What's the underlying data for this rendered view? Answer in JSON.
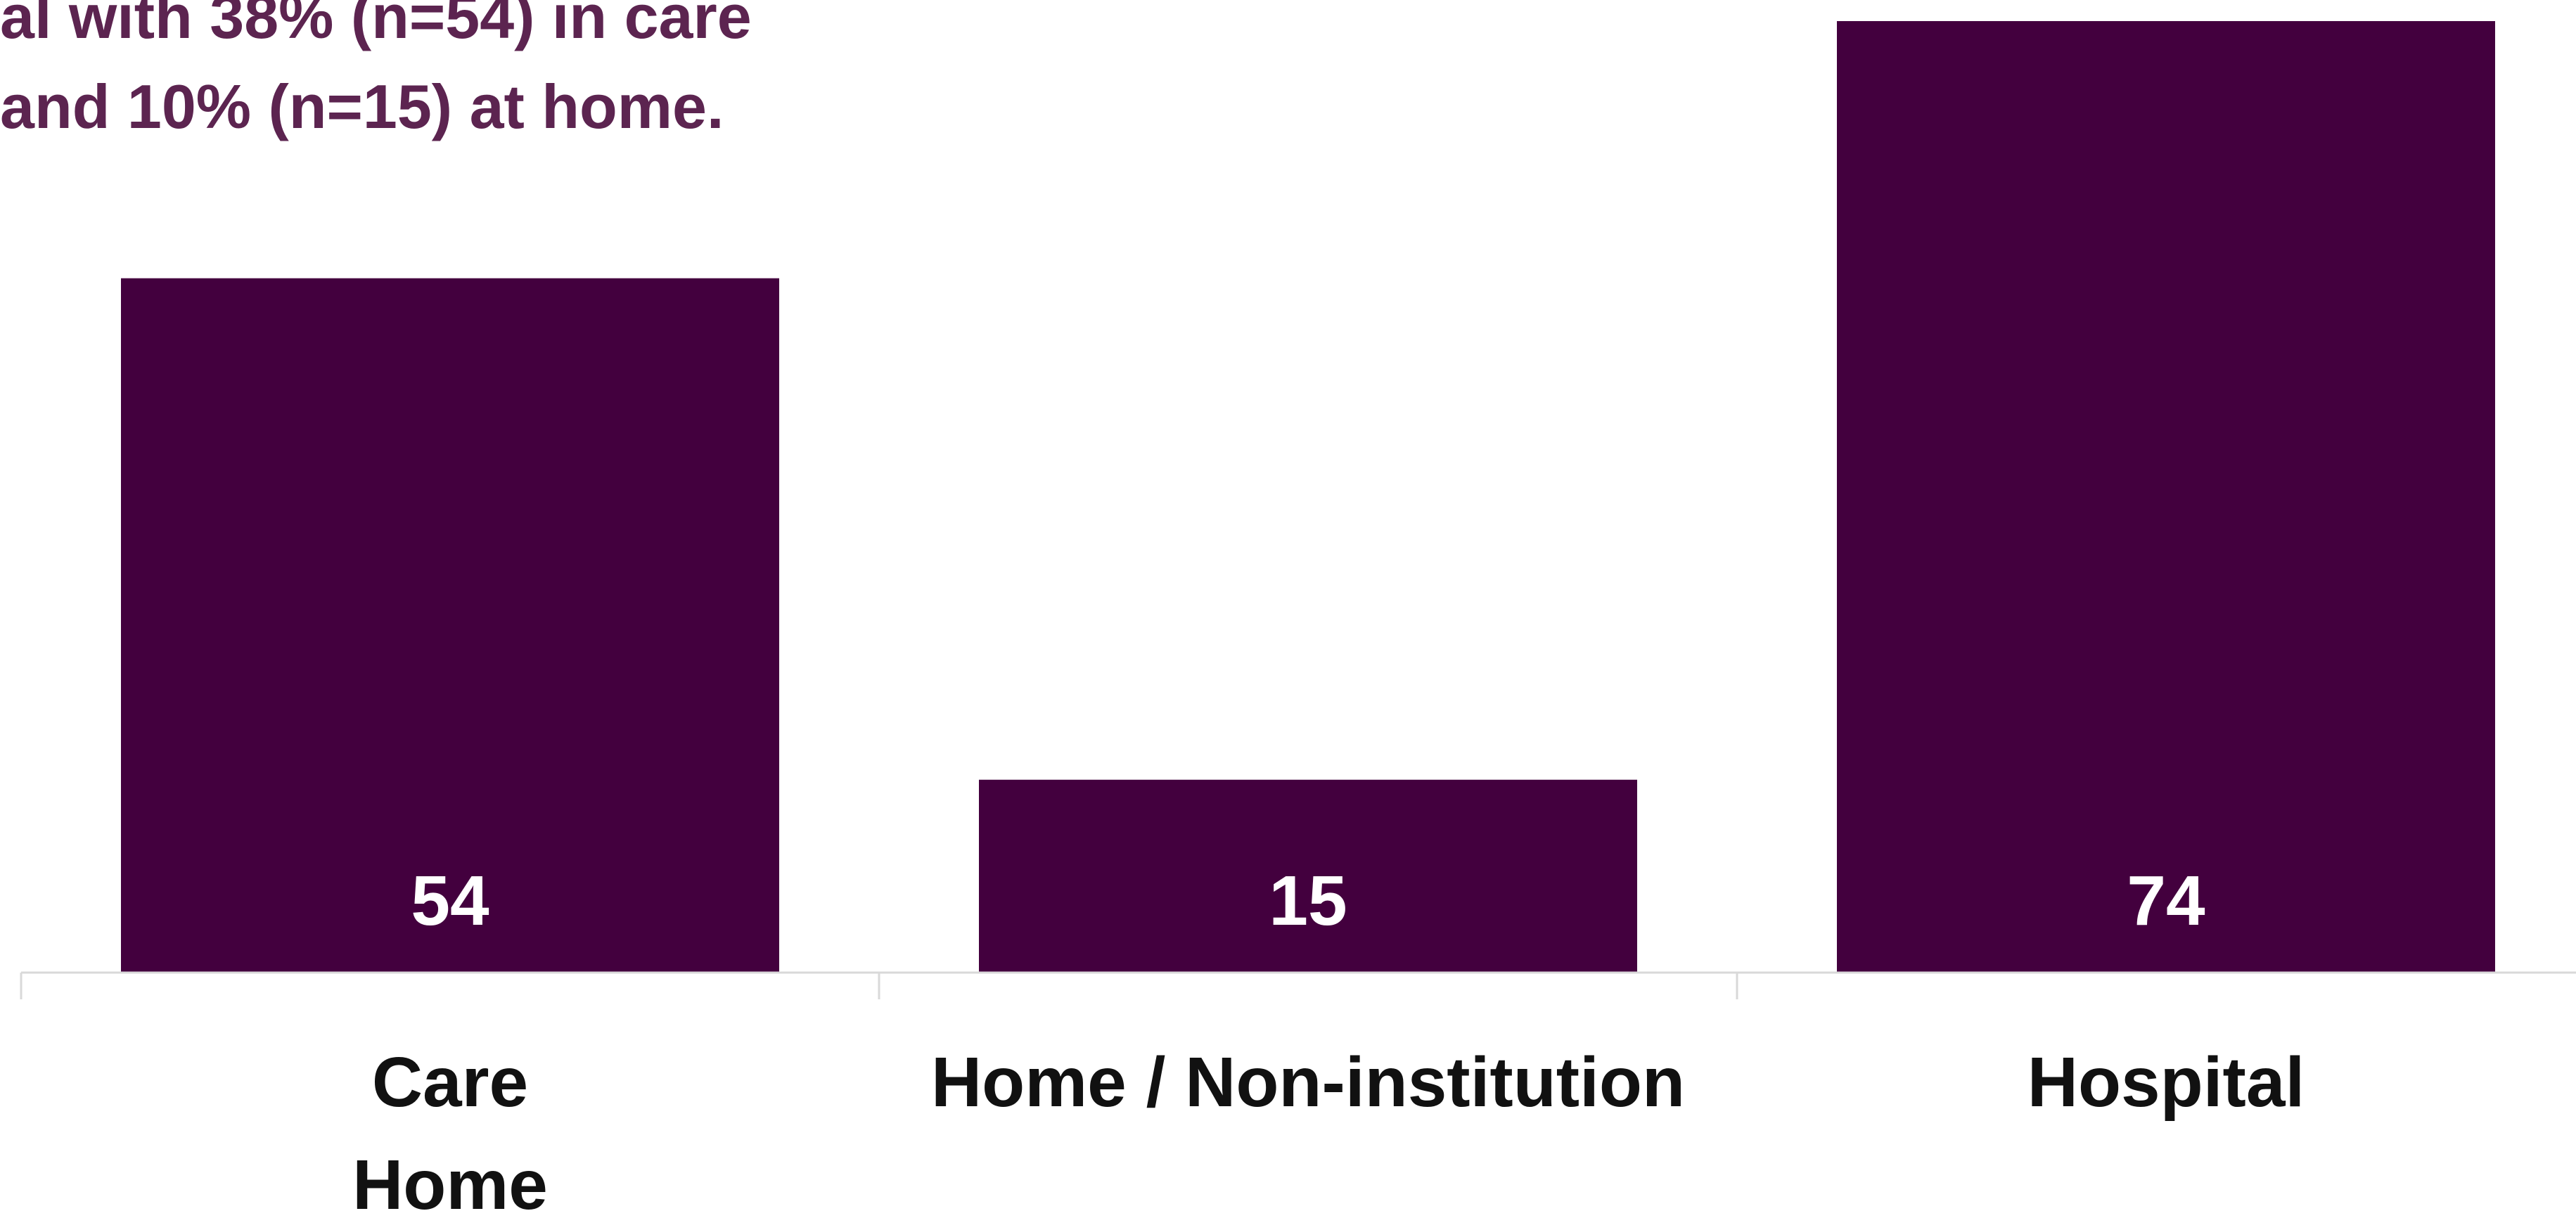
{
  "headline": {
    "line1": "al with 38% (n=54) in care",
    "line2": " and 10% (n=15) at home."
  },
  "colors": {
    "bar": "#43003e",
    "headline": "#5c2450",
    "axis": "#d9d9d9"
  },
  "chart_data": {
    "type": "bar",
    "categories": [
      "Care Home",
      "Home / Non-institution",
      "Hospital"
    ],
    "category_lines": [
      [
        "Care",
        "Home"
      ],
      [
        "Home / Non-institution"
      ],
      [
        "Hospital"
      ]
    ],
    "values": [
      54,
      15,
      74
    ],
    "data_labels": [
      "54",
      "15",
      "74"
    ],
    "title": "",
    "xlabel": "",
    "ylabel": "",
    "ylim": [
      0,
      74
    ],
    "grid": false,
    "legend": "none"
  }
}
